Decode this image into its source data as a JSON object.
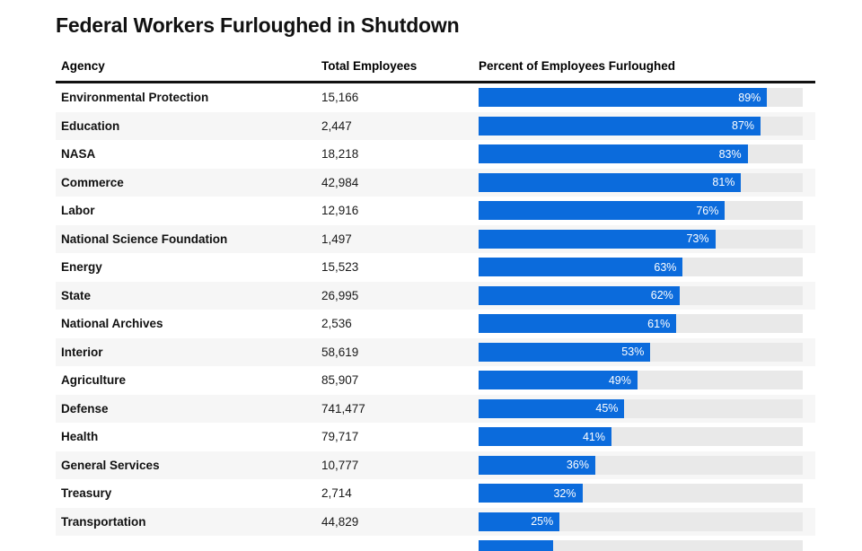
{
  "title": "Federal Workers Furloughed in Shutdown",
  "colors": {
    "bar_fill": "#0b6bdc",
    "bar_track": "#e9e9e9",
    "row_alt": "#f6f6f6",
    "rule": "#111111",
    "title": "#111111"
  },
  "table": {
    "columns": [
      "Agency",
      "Total Employees",
      "Percent of Employees Furloughed"
    ],
    "rows": [
      {
        "agency": "Environmental Protection",
        "total": "15,166",
        "pct": 89,
        "label": "89%",
        "partial": false
      },
      {
        "agency": "Education",
        "total": "2,447",
        "pct": 87,
        "label": "87%",
        "partial": false
      },
      {
        "agency": "NASA",
        "total": "18,218",
        "pct": 83,
        "label": "83%",
        "partial": false
      },
      {
        "agency": "Commerce",
        "total": "42,984",
        "pct": 81,
        "label": "81%",
        "partial": false
      },
      {
        "agency": "Labor",
        "total": "12,916",
        "pct": 76,
        "label": "76%",
        "partial": false
      },
      {
        "agency": "National Science Foundation",
        "total": "1,497",
        "pct": 73,
        "label": "73%",
        "partial": false
      },
      {
        "agency": "Energy",
        "total": "15,523",
        "pct": 63,
        "label": "63%",
        "partial": false
      },
      {
        "agency": "State",
        "total": "26,995",
        "pct": 62,
        "label": "62%",
        "partial": false
      },
      {
        "agency": "National Archives",
        "total": "2,536",
        "pct": 61,
        "label": "61%",
        "partial": false
      },
      {
        "agency": "Interior",
        "total": "58,619",
        "pct": 53,
        "label": "53%",
        "partial": false
      },
      {
        "agency": "Agriculture",
        "total": "85,907",
        "pct": 49,
        "label": "49%",
        "partial": false
      },
      {
        "agency": "Defense",
        "total": "741,477",
        "pct": 45,
        "label": "45%",
        "partial": false
      },
      {
        "agency": "Health",
        "total": "79,717",
        "pct": 41,
        "label": "41%",
        "partial": false
      },
      {
        "agency": "General Services",
        "total": "10,777",
        "pct": 36,
        "label": "36%",
        "partial": false
      },
      {
        "agency": "Treasury",
        "total": "2,714",
        "pct": 32,
        "label": "32%",
        "partial": false
      },
      {
        "agency": "Transportation",
        "total": "44,829",
        "pct": 25,
        "label": "25%",
        "partial": false
      },
      {
        "agency": "",
        "total": "",
        "pct": 23,
        "label": "",
        "partial": true
      }
    ]
  },
  "chart_data": {
    "type": "bar",
    "orientation": "horizontal",
    "title": "Federal Workers Furloughed in Shutdown",
    "categories": [
      "Environmental Protection",
      "Education",
      "NASA",
      "Commerce",
      "Labor",
      "National Science Foundation",
      "Energy",
      "State",
      "National Archives",
      "Interior",
      "Agriculture",
      "Defense",
      "Health",
      "General Services",
      "Treasury",
      "Transportation"
    ],
    "series": [
      {
        "name": "Percent of Employees Furloughed",
        "values": [
          89,
          87,
          83,
          81,
          76,
          73,
          63,
          62,
          61,
          53,
          49,
          45,
          41,
          36,
          32,
          25
        ]
      },
      {
        "name": "Total Employees",
        "values": [
          15166,
          2447,
          18218,
          42984,
          12916,
          1497,
          15523,
          26995,
          2536,
          58619,
          85907,
          741477,
          79717,
          10777,
          2714,
          44829
        ]
      }
    ],
    "xlabel": "",
    "ylabel": "",
    "xlim": [
      0,
      100
    ],
    "grid": false,
    "legend": "none",
    "value_labels": "inside-end"
  }
}
